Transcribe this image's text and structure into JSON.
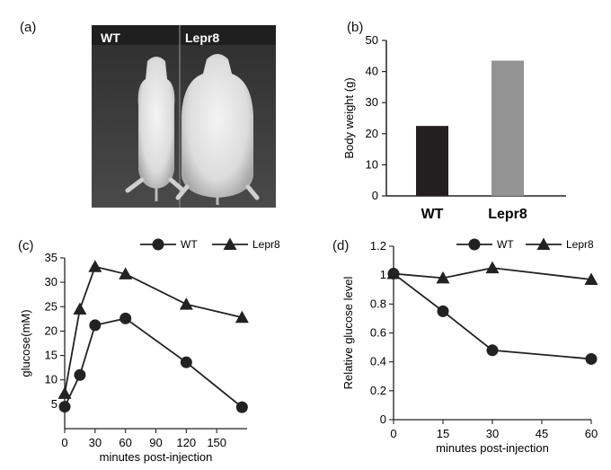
{
  "panels": {
    "a": "(a)",
    "b": "(b)",
    "c": "(c)",
    "d": "(d)"
  },
  "photo": {
    "label_wt": "WT",
    "label_lepr8": "Lepr8"
  },
  "chart_data": [
    {
      "id": "b",
      "type": "bar",
      "categories": [
        "WT",
        "Lepr8"
      ],
      "values": [
        22.5,
        43.5
      ],
      "colors": [
        "#231f20",
        "#939393"
      ],
      "ylabel": "Body weight (g)",
      "xlabel": "",
      "ylim": [
        0,
        50
      ],
      "yticks": [
        0,
        10,
        20,
        30,
        40,
        50
      ],
      "grid": false
    },
    {
      "id": "c",
      "type": "line",
      "xlabel": "minutes post-injection",
      "ylabel": "glucose(mM)",
      "xlim": [
        0,
        180
      ],
      "ylim": [
        0,
        35
      ],
      "xticks": [
        0,
        30,
        60,
        90,
        120,
        150
      ],
      "yticks": [
        5,
        10,
        15,
        20,
        25,
        30,
        35
      ],
      "legend": "top-right",
      "series": [
        {
          "name": "WT",
          "marker": "circle",
          "x": [
            0,
            15,
            30,
            60,
            120,
            175
          ],
          "y": [
            4.5,
            11,
            21.2,
            22.6,
            13.6,
            4.4
          ]
        },
        {
          "name": "Lepr8",
          "marker": "triangle",
          "x": [
            0,
            15,
            30,
            60,
            120,
            175
          ],
          "y": [
            7.2,
            24.5,
            33.2,
            31.7,
            25.5,
            22.8
          ]
        }
      ]
    },
    {
      "id": "d",
      "type": "line",
      "xlabel": "minutes post-injection",
      "ylabel": "Relative glucose level",
      "xlim": [
        0,
        60
      ],
      "ylim": [
        0,
        1.2
      ],
      "xticks": [
        0,
        15,
        30,
        45,
        60
      ],
      "yticks": [
        0,
        0.2,
        0.4,
        0.6,
        0.8,
        1,
        1.2
      ],
      "legend": "top-right",
      "series": [
        {
          "name": "WT",
          "marker": "circle",
          "x": [
            0,
            15,
            30,
            60
          ],
          "y": [
            1.01,
            0.75,
            0.48,
            0.42
          ]
        },
        {
          "name": "Lepr8",
          "marker": "triangle",
          "x": [
            0,
            15,
            30,
            60
          ],
          "y": [
            1.01,
            0.98,
            1.05,
            0.97
          ]
        }
      ]
    }
  ]
}
